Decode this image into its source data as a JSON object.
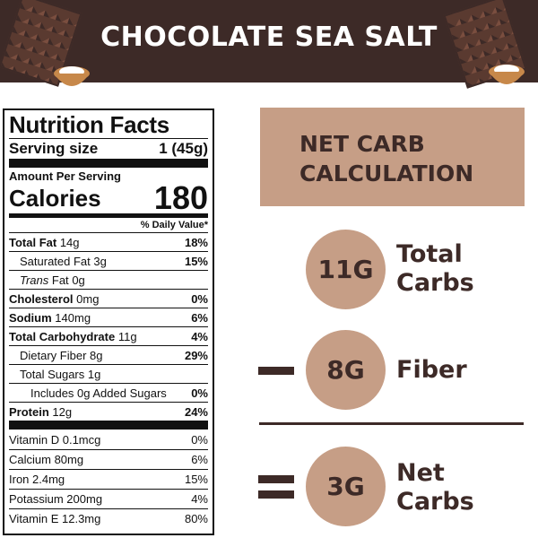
{
  "header": {
    "title": "CHOCOLATE SEA SALT",
    "colors": {
      "band": "#3d2a27",
      "accent": "#c69e86"
    },
    "icons": [
      "chocolate-bar-icon",
      "salt-bowl-icon"
    ]
  },
  "nutrition": {
    "title": "Nutrition Facts",
    "serving_label": "Serving size",
    "serving_value": "1 (45g)",
    "amount_per_serving": "Amount Per Serving",
    "calories_label": "Calories",
    "calories_value": "180",
    "daily_value_header": "% Daily Value*",
    "rows": [
      {
        "name": "Total Fat",
        "amount": "14g",
        "pct": "18%"
      },
      {
        "name": "Saturated Fat",
        "amount": "3g",
        "pct": "15%"
      },
      {
        "name": "Trans",
        "suffix": "Fat",
        "amount": "0g",
        "pct": ""
      },
      {
        "name": "Cholesterol",
        "amount": "0mg",
        "pct": "0%"
      },
      {
        "name": "Sodium",
        "amount": "140mg",
        "pct": "6%"
      },
      {
        "name": "Total Carbohydrate",
        "amount": "11g",
        "pct": "4%"
      },
      {
        "name": "Dietary Fiber",
        "amount": "8g",
        "pct": "29%"
      },
      {
        "name": "Total Sugars",
        "amount": "1g",
        "pct": ""
      },
      {
        "name": "Includes 0g Added Sugars",
        "amount": "",
        "pct": "0%"
      },
      {
        "name": "Protein",
        "amount": "12g",
        "pct": "24%"
      }
    ],
    "vitamins": [
      {
        "name": "Vitamin D 0.1mcg",
        "pct": "0%"
      },
      {
        "name": "Calcium 80mg",
        "pct": "6%"
      },
      {
        "name": "Iron 2.4mg",
        "pct": "15%"
      },
      {
        "name": "Potassium 200mg",
        "pct": "4%"
      },
      {
        "name": "Vitamin E 12.3mg",
        "pct": "80%"
      }
    ]
  },
  "net_carb": {
    "title_line1": "NET CARB",
    "title_line2": "CALCULATION",
    "total": {
      "value": "11G",
      "label_line1": "Total",
      "label_line2": "Carbs"
    },
    "fiber": {
      "value": "8G",
      "label": "Fiber"
    },
    "net": {
      "value": "3G",
      "label_line1": "Net",
      "label_line2": "Carbs"
    }
  }
}
